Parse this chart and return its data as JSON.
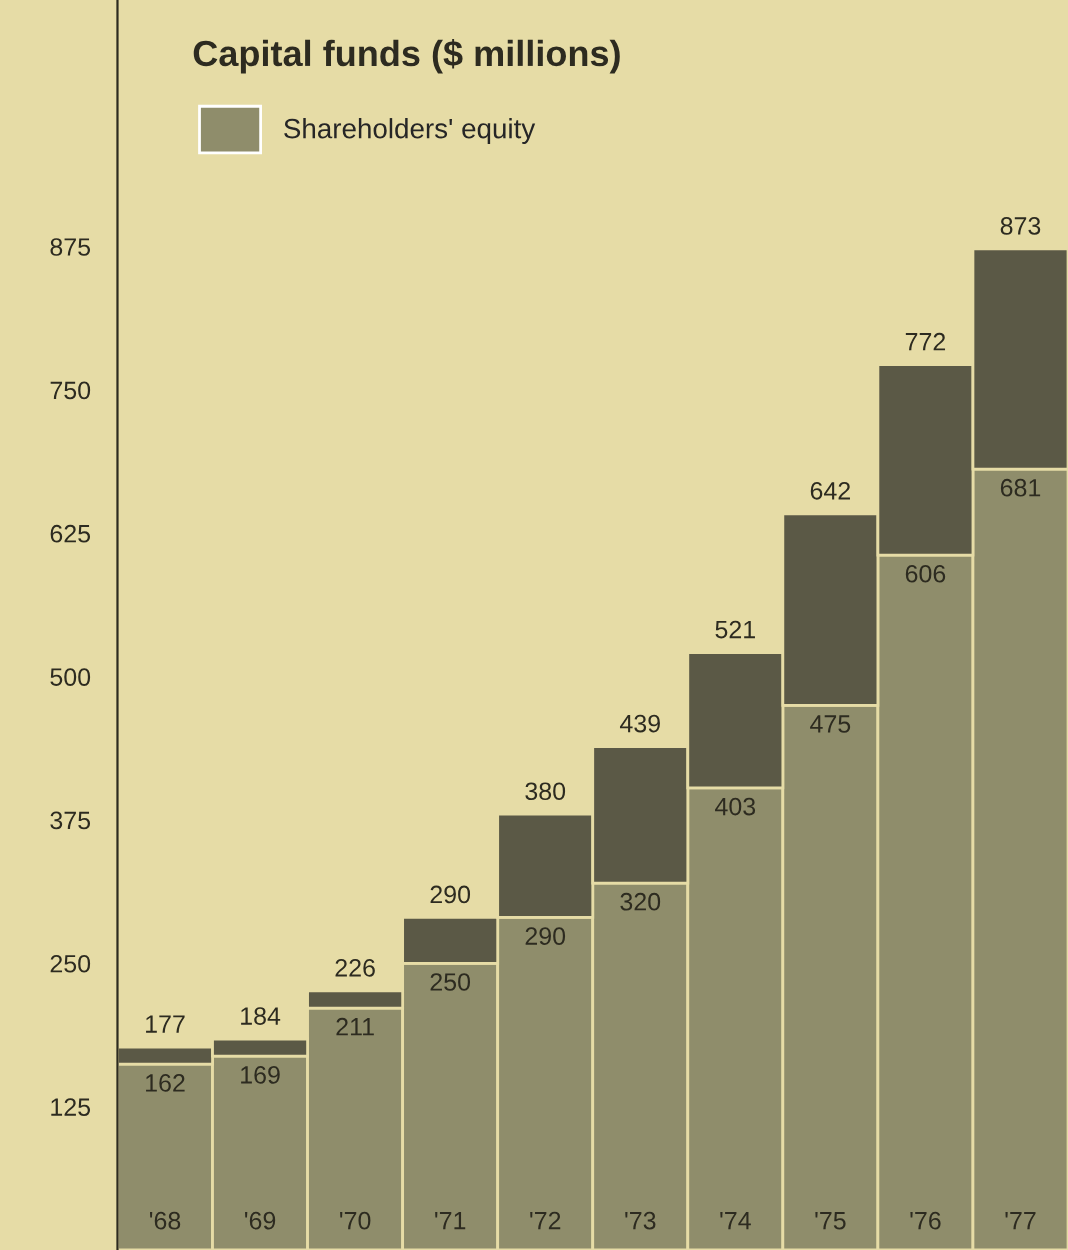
{
  "chart_data": {
    "type": "bar",
    "title": "Capital funds ($ millions)",
    "stacked": true,
    "categories": [
      "'68",
      "'69",
      "'70",
      "'71",
      "'72",
      "'73",
      "'74",
      "'75",
      "'76",
      "'77"
    ],
    "series": [
      {
        "name": "Shareholders' equity",
        "color": "#8f8d6b",
        "values": [
          162,
          169,
          211,
          250,
          290,
          320,
          403,
          475,
          606,
          681
        ],
        "value_labels": [
          "162",
          "169",
          "211",
          "250",
          "290",
          "320",
          "403",
          "475",
          "606",
          "681"
        ]
      },
      {
        "color": "#5b5946",
        "values": [
          15,
          15,
          15,
          40,
          90,
          119,
          118,
          167,
          166,
          192
        ]
      }
    ],
    "totals": [
      "177",
      "184",
      "226",
      "290",
      "380",
      "439",
      "521",
      "642",
      "772",
      "873"
    ],
    "ylim": [
      0,
      1090
    ],
    "yticks": [
      125,
      250,
      375,
      500,
      625,
      750,
      875
    ],
    "grid": false,
    "legend": "top left"
  }
}
